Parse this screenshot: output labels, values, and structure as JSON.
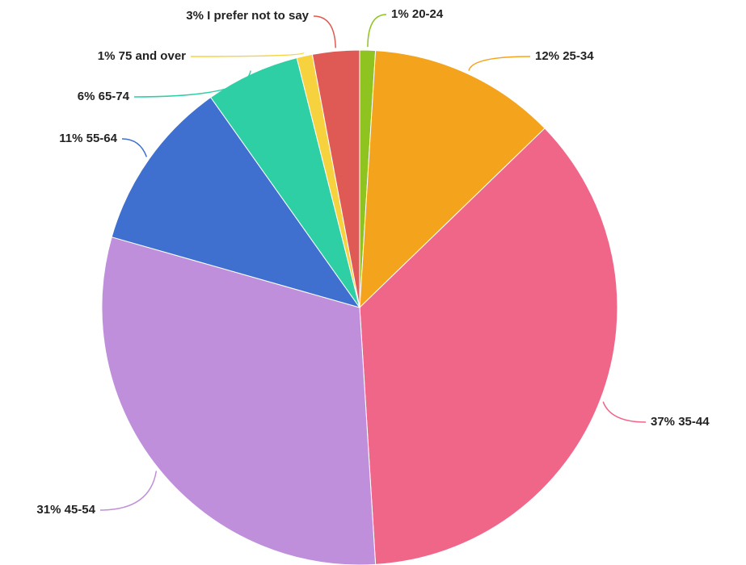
{
  "chart_data": {
    "type": "pie",
    "categories": [
      "20-24",
      "25-34",
      "35-44",
      "45-54",
      "55-64",
      "65-74",
      "75 and over",
      "I prefer not to say"
    ],
    "values": [
      1,
      12,
      37,
      31,
      11,
      6,
      1,
      3
    ],
    "value_labels": [
      "1%",
      "12%",
      "37%",
      "31%",
      "11%",
      "6%",
      "1%",
      "3%"
    ],
    "colors": [
      "#8fc31f",
      "#f4a41c",
      "#f06689",
      "#bf8fdb",
      "#3f6fcf",
      "#2ecfa5",
      "#f7d23f",
      "#e05a55"
    ]
  }
}
